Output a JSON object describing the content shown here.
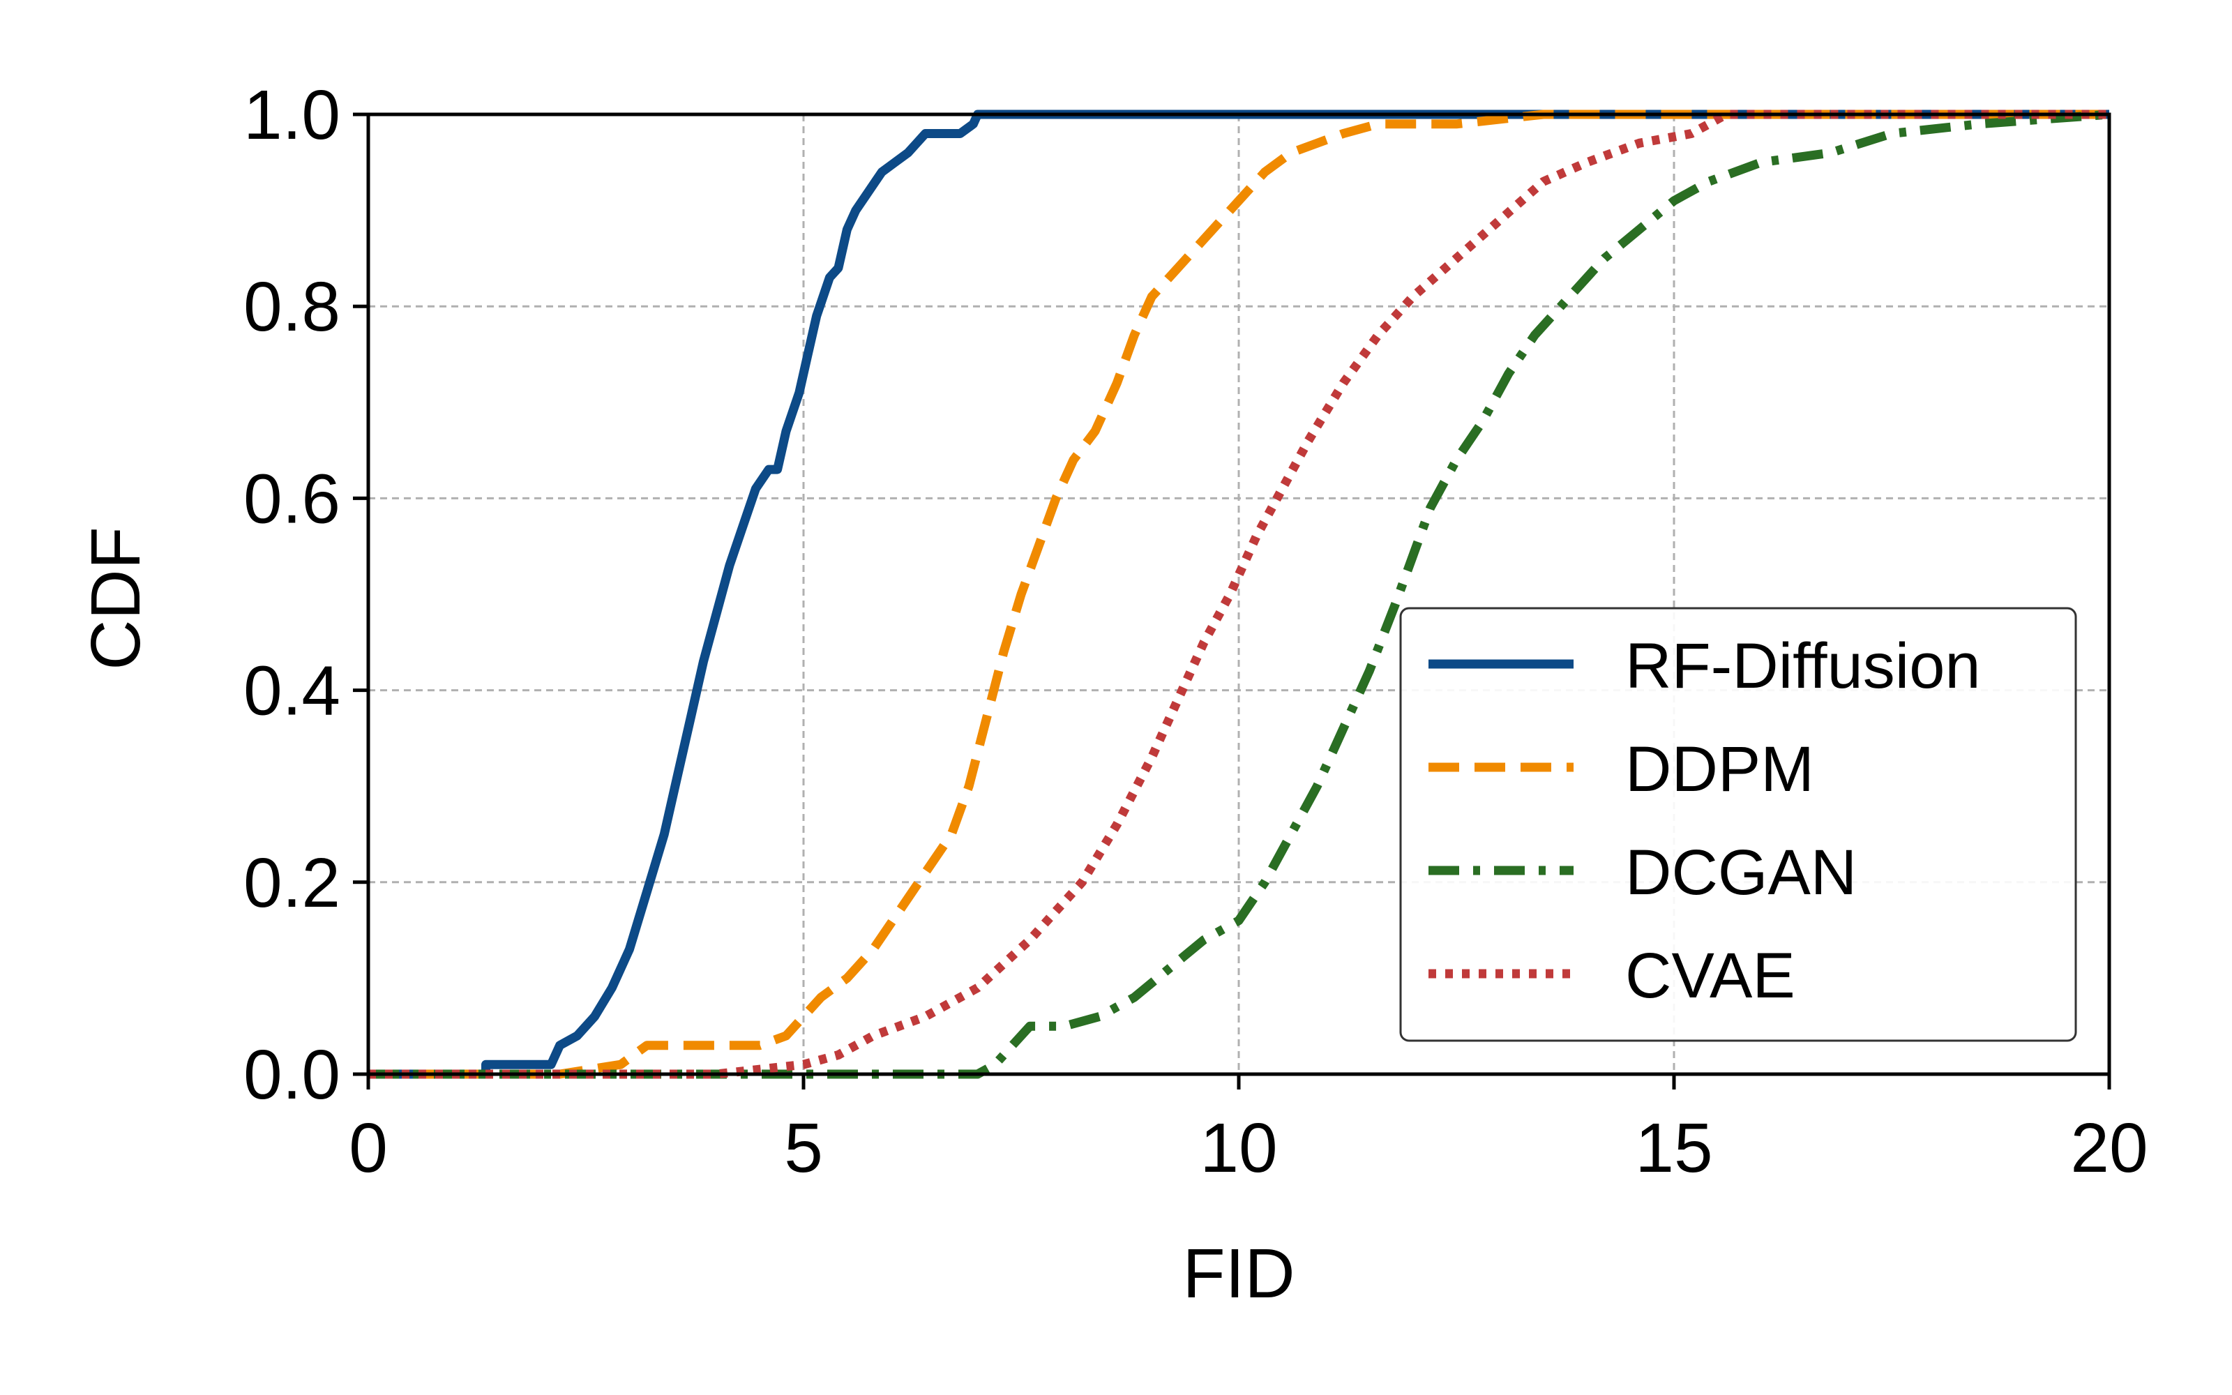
{
  "chart_data": {
    "type": "line",
    "title": "",
    "xlabel": "FID",
    "ylabel": "CDF",
    "xlim": [
      0,
      20
    ],
    "ylim": [
      0,
      1
    ],
    "xticks": [
      0,
      5,
      10,
      15,
      20
    ],
    "xtick_labels": [
      "0",
      "5",
      "10",
      "15",
      "20"
    ],
    "yticks": [
      0,
      0.2,
      0.4,
      0.6,
      0.8,
      1.0
    ],
    "ytick_labels": [
      "0.0",
      "0.2",
      "0.4",
      "0.6",
      "0.8",
      "1.0"
    ],
    "grid": true,
    "legend_position": "lower-right",
    "series": [
      {
        "name": "RF-Diffusion",
        "color": "#0d4a87",
        "style": "solid",
        "x": [
          0,
          1.35,
          1.35,
          2.1,
          2.2,
          2.4,
          2.6,
          2.8,
          3.0,
          3.2,
          3.4,
          3.55,
          3.7,
          3.85,
          4.0,
          4.15,
          4.3,
          4.45,
          4.6,
          4.7,
          4.8,
          4.95,
          5.05,
          5.15,
          5.3,
          5.4,
          5.5,
          5.6,
          5.75,
          5.9,
          6.05,
          6.2,
          6.3,
          6.4,
          6.6,
          6.8,
          6.95,
          7.0,
          20
        ],
        "y": [
          0,
          0,
          0.01,
          0.01,
          0.03,
          0.04,
          0.06,
          0.09,
          0.13,
          0.19,
          0.25,
          0.31,
          0.37,
          0.43,
          0.48,
          0.53,
          0.57,
          0.61,
          0.63,
          0.63,
          0.67,
          0.71,
          0.75,
          0.79,
          0.83,
          0.84,
          0.88,
          0.9,
          0.92,
          0.94,
          0.95,
          0.96,
          0.97,
          0.98,
          0.98,
          0.98,
          0.99,
          1.0,
          1.0
        ]
      },
      {
        "name": "DDPM",
        "color": "#f08a00",
        "style": "dashed",
        "x": [
          0,
          2.2,
          2.9,
          3.2,
          4.5,
          4.8,
          5.0,
          5.2,
          5.5,
          5.8,
          6.1,
          6.4,
          6.7,
          6.9,
          7.1,
          7.3,
          7.5,
          7.7,
          7.9,
          8.1,
          8.35,
          8.6,
          8.8,
          9.0,
          9.3,
          9.6,
          9.9,
          10.1,
          10.3,
          10.6,
          10.9,
          11.2,
          11.6,
          12.5,
          13.5,
          20
        ],
        "y": [
          0,
          0,
          0.01,
          0.03,
          0.03,
          0.04,
          0.06,
          0.08,
          0.1,
          0.13,
          0.17,
          0.21,
          0.25,
          0.3,
          0.37,
          0.44,
          0.5,
          0.55,
          0.6,
          0.64,
          0.67,
          0.72,
          0.77,
          0.81,
          0.84,
          0.87,
          0.9,
          0.92,
          0.94,
          0.96,
          0.97,
          0.98,
          0.99,
          0.99,
          1.0,
          1.0
        ]
      },
      {
        "name": "DCGAN",
        "color": "#2a6e23",
        "style": "dashdot",
        "x": [
          0,
          3.4,
          7.0,
          7.2,
          7.4,
          7.6,
          8.0,
          8.4,
          8.8,
          9.2,
          9.6,
          10.0,
          10.3,
          10.6,
          10.9,
          11.2,
          11.5,
          11.8,
          12.0,
          12.2,
          12.5,
          12.8,
          13.1,
          13.4,
          13.8,
          14.2,
          14.6,
          15.0,
          15.4,
          16.0,
          16.8,
          17.5,
          18.5,
          20
        ],
        "y": [
          0,
          0,
          0,
          0.01,
          0.03,
          0.05,
          0.05,
          0.06,
          0.08,
          0.11,
          0.14,
          0.16,
          0.2,
          0.25,
          0.3,
          0.36,
          0.42,
          0.49,
          0.54,
          0.59,
          0.64,
          0.68,
          0.73,
          0.77,
          0.81,
          0.85,
          0.88,
          0.91,
          0.93,
          0.95,
          0.96,
          0.98,
          0.99,
          1.0
        ]
      },
      {
        "name": "CVAE",
        "color": "#c03a3a",
        "style": "dotted",
        "x": [
          0,
          4.0,
          5.0,
          5.4,
          5.8,
          6.4,
          7.0,
          7.6,
          8.2,
          8.6,
          9.0,
          9.3,
          9.6,
          9.9,
          10.2,
          10.5,
          10.8,
          11.2,
          11.6,
          12.0,
          12.5,
          13.0,
          13.5,
          14.0,
          14.6,
          15.2,
          15.6,
          20
        ],
        "y": [
          0,
          0,
          0.01,
          0.02,
          0.04,
          0.06,
          0.09,
          0.14,
          0.2,
          0.26,
          0.33,
          0.39,
          0.45,
          0.5,
          0.56,
          0.61,
          0.66,
          0.72,
          0.77,
          0.81,
          0.85,
          0.89,
          0.93,
          0.95,
          0.97,
          0.98,
          1.0,
          1.0
        ]
      }
    ]
  }
}
